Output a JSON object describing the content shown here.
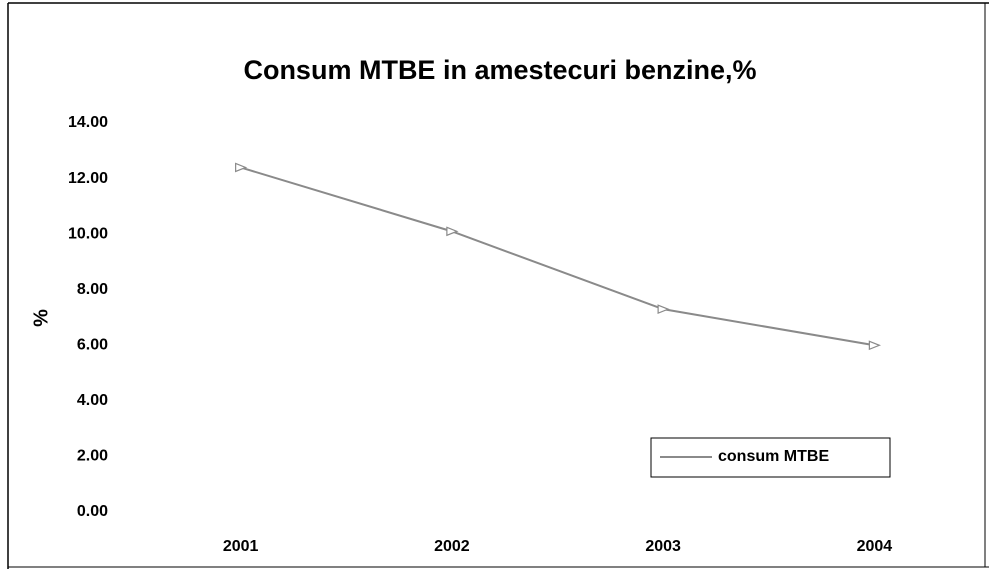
{
  "chart_data": {
    "type": "line",
    "title": "Consum MTBE in amestecuri benzine,%",
    "y_label": "%",
    "categories": [
      "2001",
      "2002",
      "2003",
      "2004"
    ],
    "series": [
      {
        "name": "consum MTBE",
        "color": "#8a8a8a",
        "values": [
          12.4,
          10.1,
          7.3,
          6.0
        ]
      }
    ],
    "ylim": [
      0,
      14
    ],
    "yticks": [
      {
        "value": 0,
        "label": "0.00"
      },
      {
        "value": 2,
        "label": "2.00"
      },
      {
        "value": 4,
        "label": "4.00"
      },
      {
        "value": 6,
        "label": "6.00"
      },
      {
        "value": 8,
        "label": "8.00"
      },
      {
        "value": 10,
        "label": "10.00"
      },
      {
        "value": 12,
        "label": "12.00"
      },
      {
        "value": 14,
        "label": "14.00"
      }
    ],
    "grid": false,
    "legend": "lower right"
  }
}
